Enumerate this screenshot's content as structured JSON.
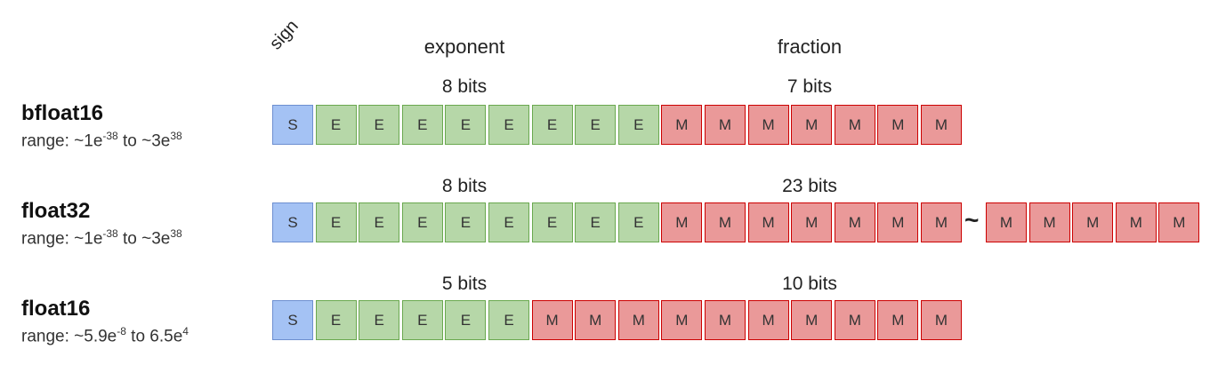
{
  "headers": {
    "sign": "sign",
    "exponent": "exponent",
    "fraction": "fraction"
  },
  "colors": {
    "sign": "#a4c2f4",
    "exponent": "#b6d7a8",
    "mantissa": "#ea9999"
  },
  "formats": [
    {
      "name": "bfloat16",
      "range_prefix": "range: ~1e",
      "range_exp1": "-38",
      "range_mid": " to ~3e",
      "range_exp2": "38",
      "exponent_bits_label": "8 bits",
      "fraction_bits_label": "7 bits",
      "cells": [
        "S",
        "E",
        "E",
        "E",
        "E",
        "E",
        "E",
        "E",
        "E",
        "M",
        "M",
        "M",
        "M",
        "M",
        "M",
        "M"
      ]
    },
    {
      "name": "float32",
      "range_prefix": "range: ~1e",
      "range_exp1": "-38",
      "range_mid": " to ~3e",
      "range_exp2": "38",
      "exponent_bits_label": "8 bits",
      "fraction_bits_label": "23 bits",
      "cells": [
        "S",
        "E",
        "E",
        "E",
        "E",
        "E",
        "E",
        "E",
        "E",
        "M",
        "M",
        "M",
        "M",
        "M",
        "M",
        "M"
      ],
      "ellipsis": "~",
      "extra_cells": [
        "M",
        "M",
        "M",
        "M",
        "M"
      ]
    },
    {
      "name": "float16",
      "range_prefix": "range: ~5.9e",
      "range_exp1": "-8",
      "range_mid": " to 6.5e",
      "range_exp2": "4",
      "exponent_bits_label": "5 bits",
      "fraction_bits_label": "10 bits",
      "cells": [
        "S",
        "E",
        "E",
        "E",
        "E",
        "E",
        "M",
        "M",
        "M",
        "M",
        "M",
        "M",
        "M",
        "M",
        "M",
        "M"
      ]
    }
  ]
}
